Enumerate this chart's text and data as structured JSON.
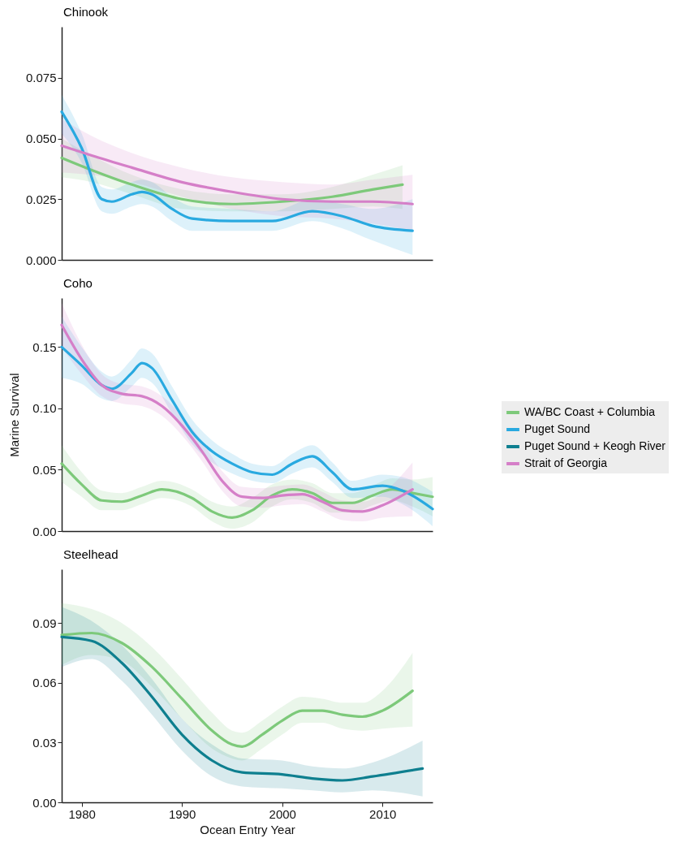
{
  "chart_data": [
    {
      "type": "line",
      "title": "Chinook",
      "legend": "right",
      "xlim": [
        1978,
        2015
      ],
      "ylim": [
        0,
        0.096
      ],
      "yticks": [
        {
          "value": 0,
          "label": "0.000"
        },
        0.025,
        {
          "value": 0.05,
          "label": "0.050"
        },
        0.075
      ],
      "tick_labels": "y",
      "grid": false,
      "series": [
        {
          "name": "WA/BC Coast + Columbia",
          "color": "#7dc97a",
          "x": [
            1978,
            1981,
            1985,
            1990,
            1995,
            2000,
            2005,
            2009,
            2012
          ],
          "values": [
            0.042,
            0.037,
            0.031,
            0.025,
            0.023,
            0.024,
            0.026,
            0.029,
            0.031
          ],
          "lower": [
            0.034,
            0.032,
            0.027,
            0.021,
            0.02,
            0.02,
            0.021,
            0.022,
            0.021
          ],
          "upper": [
            0.05,
            0.043,
            0.035,
            0.029,
            0.027,
            0.027,
            0.03,
            0.035,
            0.039
          ]
        },
        {
          "name": "Puget Sound",
          "color": "#29a9e0",
          "x": [
            1978,
            1980,
            1982,
            1983,
            1985,
            1986,
            1987,
            1989,
            1991,
            1995,
            1999,
            2003,
            2006,
            2009,
            2013
          ],
          "values": [
            0.061,
            0.046,
            0.025,
            0.024,
            0.027,
            0.028,
            0.027,
            0.021,
            0.017,
            0.016,
            0.016,
            0.02,
            0.018,
            0.014,
            0.012
          ],
          "lower": [
            0.052,
            0.04,
            0.02,
            0.019,
            0.022,
            0.023,
            0.022,
            0.016,
            0.012,
            0.012,
            0.012,
            0.016,
            0.013,
            0.008,
            0.002
          ],
          "upper": [
            0.068,
            0.052,
            0.03,
            0.029,
            0.032,
            0.033,
            0.032,
            0.026,
            0.022,
            0.021,
            0.02,
            0.025,
            0.023,
            0.021,
            0.025
          ]
        },
        {
          "name": "Strait of Georgia",
          "color": "#d57fc8",
          "x": [
            1978,
            1981,
            1985,
            1990,
            1995,
            2000,
            2005,
            2009,
            2013
          ],
          "values": [
            0.047,
            0.043,
            0.038,
            0.032,
            0.028,
            0.025,
            0.024,
            0.024,
            0.023
          ],
          "lower": [
            0.036,
            0.035,
            0.032,
            0.026,
            0.021,
            0.018,
            0.017,
            0.015,
            0.012
          ],
          "upper": [
            0.058,
            0.051,
            0.044,
            0.038,
            0.034,
            0.032,
            0.031,
            0.033,
            0.035
          ]
        }
      ]
    },
    {
      "type": "line",
      "title": "Coho",
      "ylabel": "Marine Survival",
      "legend": "right",
      "xlim": [
        1978,
        2015
      ],
      "ylim": [
        0,
        0.19
      ],
      "yticks": [
        {
          "value": 0,
          "label": "0.00"
        },
        0.05,
        {
          "value": 0.1,
          "label": "0.10"
        },
        0.15
      ],
      "tick_labels": "y",
      "grid": false,
      "series": [
        {
          "name": "WA/BC Coast + Columbia",
          "color": "#7dc97a",
          "x": [
            1978,
            1980,
            1982,
            1984,
            1986,
            1988,
            1991,
            1993,
            1995,
            1997,
            1999,
            2001,
            2003,
            2005,
            2007,
            2009,
            2011,
            2013,
            2015
          ],
          "values": [
            0.055,
            0.038,
            0.025,
            0.024,
            0.029,
            0.034,
            0.027,
            0.016,
            0.011,
            0.017,
            0.029,
            0.034,
            0.031,
            0.023,
            0.023,
            0.029,
            0.034,
            0.031,
            0.028
          ],
          "lower": [
            0.04,
            0.028,
            0.017,
            0.017,
            0.022,
            0.027,
            0.02,
            0.008,
            0.002,
            0.007,
            0.02,
            0.026,
            0.023,
            0.015,
            0.015,
            0.021,
            0.025,
            0.02,
            0.012
          ],
          "upper": [
            0.07,
            0.048,
            0.033,
            0.031,
            0.036,
            0.041,
            0.034,
            0.024,
            0.02,
            0.027,
            0.038,
            0.042,
            0.039,
            0.031,
            0.031,
            0.037,
            0.043,
            0.042,
            0.044
          ]
        },
        {
          "name": "Puget Sound",
          "color": "#29a9e0",
          "x": [
            1978,
            1980,
            1982,
            1983,
            1985,
            1986,
            1987,
            1989,
            1991,
            1993,
            1995,
            1997,
            1999,
            2001,
            2003,
            2005,
            2007,
            2010,
            2012,
            2015
          ],
          "values": [
            0.15,
            0.135,
            0.119,
            0.116,
            0.129,
            0.137,
            0.133,
            0.107,
            0.081,
            0.065,
            0.055,
            0.048,
            0.046,
            0.055,
            0.061,
            0.048,
            0.034,
            0.037,
            0.033,
            0.018
          ],
          "lower": [
            0.125,
            0.12,
            0.108,
            0.106,
            0.118,
            0.125,
            0.121,
            0.096,
            0.071,
            0.056,
            0.047,
            0.041,
            0.039,
            0.047,
            0.052,
            0.04,
            0.027,
            0.028,
            0.022,
            0.004
          ],
          "upper": [
            0.175,
            0.15,
            0.13,
            0.126,
            0.14,
            0.149,
            0.145,
            0.118,
            0.091,
            0.074,
            0.063,
            0.055,
            0.053,
            0.063,
            0.07,
            0.056,
            0.041,
            0.046,
            0.044,
            0.032
          ]
        },
        {
          "name": "Strait of Georgia",
          "color": "#d57fc8",
          "x": [
            1978,
            1980,
            1982,
            1984,
            1986,
            1988,
            1990,
            1992,
            1994,
            1996,
            1998,
            2000,
            2002,
            2004,
            2006,
            2008,
            2010,
            2013
          ],
          "values": [
            0.168,
            0.14,
            0.119,
            0.112,
            0.11,
            0.102,
            0.086,
            0.065,
            0.041,
            0.028,
            0.027,
            0.029,
            0.03,
            0.024,
            0.017,
            0.016,
            0.021,
            0.034
          ],
          "lower": [
            0.15,
            0.128,
            0.11,
            0.104,
            0.102,
            0.094,
            0.078,
            0.057,
            0.033,
            0.02,
            0.019,
            0.021,
            0.022,
            0.016,
            0.009,
            0.008,
            0.011,
            0.012
          ],
          "upper": [
            0.186,
            0.152,
            0.128,
            0.12,
            0.118,
            0.11,
            0.094,
            0.073,
            0.049,
            0.036,
            0.035,
            0.037,
            0.038,
            0.032,
            0.025,
            0.024,
            0.031,
            0.056
          ]
        }
      ]
    },
    {
      "type": "line",
      "title": "Steelhead",
      "legend": "right",
      "xlabel": "Ocean Entry Year",
      "xlim": [
        1978,
        2015
      ],
      "xticks": [
        1980,
        1990,
        2000,
        2010
      ],
      "ylim": [
        0,
        0.117
      ],
      "yticks": [
        {
          "value": 0,
          "label": "0.00"
        },
        0.03,
        0.06,
        0.09
      ],
      "grid": false,
      "series": [
        {
          "name": "WA/BC Coast + Columbia",
          "color": "#7dc97a",
          "x": [
            1978,
            1981,
            1984,
            1987,
            1990,
            1993,
            1995,
            1996,
            1998,
            2000,
            2002,
            2004,
            2006,
            2008,
            2010,
            2013
          ],
          "values": [
            0.084,
            0.085,
            0.08,
            0.068,
            0.052,
            0.036,
            0.029,
            0.028,
            0.034,
            0.041,
            0.046,
            0.046,
            0.044,
            0.043,
            0.046,
            0.056
          ],
          "lower": [
            0.069,
            0.074,
            0.071,
            0.058,
            0.042,
            0.027,
            0.022,
            0.021,
            0.027,
            0.034,
            0.04,
            0.04,
            0.037,
            0.036,
            0.037,
            0.038
          ],
          "upper": [
            0.1,
            0.097,
            0.09,
            0.078,
            0.062,
            0.045,
            0.036,
            0.035,
            0.041,
            0.048,
            0.053,
            0.052,
            0.05,
            0.05,
            0.056,
            0.075
          ]
        },
        {
          "name": "Puget Sound + Keogh River",
          "color": "#0e7f8f",
          "x": [
            1978,
            1981,
            1984,
            1987,
            1990,
            1993,
            1996,
            2000,
            2003,
            2006,
            2009,
            2014
          ],
          "values": [
            0.083,
            0.081,
            0.07,
            0.053,
            0.034,
            0.021,
            0.015,
            0.014,
            0.012,
            0.011,
            0.013,
            0.017
          ],
          "lower": [
            0.068,
            0.072,
            0.061,
            0.044,
            0.026,
            0.013,
            0.008,
            0.007,
            0.006,
            0.005,
            0.006,
            0.003
          ],
          "upper": [
            0.098,
            0.091,
            0.079,
            0.062,
            0.042,
            0.029,
            0.022,
            0.021,
            0.018,
            0.017,
            0.02,
            0.031
          ]
        }
      ]
    }
  ]
}
